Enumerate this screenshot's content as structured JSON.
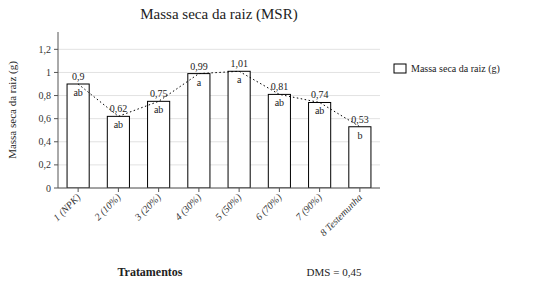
{
  "chart_data": {
    "type": "bar",
    "title": "Massa seca da raiz (MSR)",
    "ylabel": "Massa seca da raiz (g)",
    "xlabel": "Tratamentos",
    "annotations": [
      "DMS = 0,45"
    ],
    "categories": [
      "1 (NPK)",
      "2 (10%)",
      "3 (20%)",
      "4 (30%)",
      "5 (50%)",
      "6 (70%)",
      "7 (90%)",
      "8 Testemunha"
    ],
    "series": [
      {
        "name": "Massa seca da raiz (g)",
        "color": "#ffffff",
        "values": [
          0.9,
          0.62,
          0.75,
          0.99,
          1.01,
          0.81,
          0.74,
          0.53
        ],
        "value_labels": [
          "0,9",
          "0,62",
          "0,75",
          "0,99",
          "1,01",
          "0,81",
          "0,74",
          "0,53"
        ],
        "letters": [
          "ab",
          "ab",
          "ab",
          "a",
          "a",
          "ab",
          "ab",
          "b"
        ]
      }
    ],
    "ylim": [
      0,
      1.35
    ],
    "yticks": [
      0,
      {
        "value": 0.2,
        "label": "0,2"
      },
      {
        "value": 0.4,
        "label": "0,4"
      },
      {
        "value": 0.6,
        "label": "0,6"
      },
      {
        "value": 0.8,
        "label": "0,8"
      },
      1,
      {
        "value": 1.2,
        "label": "1,2"
      }
    ],
    "grid": true,
    "legend": "right",
    "data_labels": true
  }
}
